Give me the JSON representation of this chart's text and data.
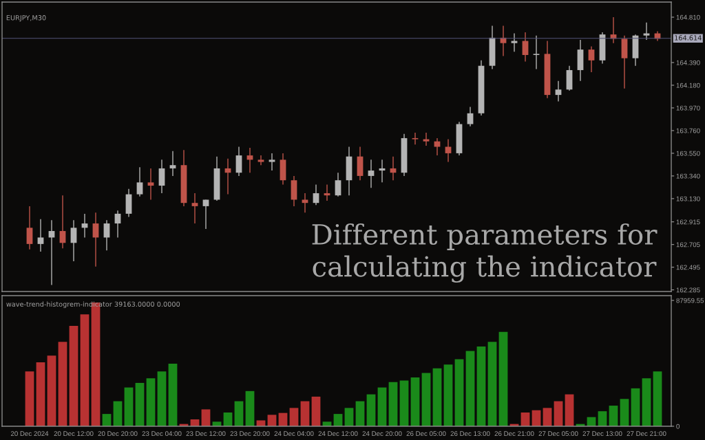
{
  "chart_data": [
    {
      "type": "candlestick",
      "title": "EURJPY,M30",
      "ohlc": [
        [
          162.86,
          163.06,
          162.66,
          162.71
        ],
        [
          162.71,
          162.94,
          162.64,
          162.77
        ],
        [
          162.77,
          162.93,
          162.33,
          162.83
        ],
        [
          162.83,
          163.16,
          162.67,
          162.72
        ],
        [
          162.72,
          162.93,
          162.55,
          162.86
        ],
        [
          162.86,
          162.99,
          162.77,
          162.9
        ],
        [
          162.9,
          163.0,
          162.5,
          162.77
        ],
        [
          162.77,
          162.93,
          162.65,
          162.9
        ],
        [
          162.9,
          163.02,
          162.77,
          162.99
        ],
        [
          162.99,
          163.22,
          162.96,
          163.17
        ],
        [
          163.17,
          163.42,
          163.15,
          163.28
        ],
        [
          163.28,
          163.41,
          163.12,
          163.25
        ],
        [
          163.25,
          163.49,
          163.18,
          163.41
        ],
        [
          163.41,
          163.57,
          163.34,
          163.44
        ],
        [
          163.44,
          163.58,
          163.06,
          163.09
        ],
        [
          163.09,
          163.18,
          162.9,
          163.06
        ],
        [
          163.06,
          163.12,
          162.85,
          163.12
        ],
        [
          163.12,
          163.52,
          163.11,
          163.41
        ],
        [
          163.41,
          163.5,
          163.17,
          163.37
        ],
        [
          163.37,
          163.61,
          163.34,
          163.53
        ],
        [
          163.53,
          163.6,
          163.37,
          163.49
        ],
        [
          163.49,
          163.53,
          163.44,
          163.47
        ],
        [
          163.47,
          163.55,
          163.39,
          163.49
        ],
        [
          163.49,
          163.55,
          163.26,
          163.3
        ],
        [
          163.3,
          163.34,
          163.06,
          163.12
        ],
        [
          163.12,
          163.18,
          163.0,
          163.09
        ],
        [
          163.09,
          163.26,
          163.07,
          163.18
        ],
        [
          163.18,
          163.26,
          163.11,
          163.16
        ],
        [
          163.16,
          163.37,
          163.15,
          163.3
        ],
        [
          163.3,
          163.61,
          163.16,
          163.52
        ],
        [
          163.52,
          163.61,
          163.3,
          163.34
        ],
        [
          163.34,
          163.49,
          163.23,
          163.39
        ],
        [
          163.39,
          163.49,
          163.28,
          163.41
        ],
        [
          163.41,
          163.52,
          163.3,
          163.37
        ],
        [
          163.37,
          163.73,
          163.34,
          163.69
        ],
        [
          163.69,
          163.74,
          163.63,
          163.68
        ],
        [
          163.68,
          163.74,
          163.62,
          163.66
        ],
        [
          163.66,
          163.69,
          163.53,
          163.61
        ],
        [
          163.61,
          163.68,
          163.47,
          163.55
        ],
        [
          163.55,
          163.84,
          163.53,
          163.82
        ],
        [
          163.82,
          163.98,
          163.8,
          163.92
        ],
        [
          163.92,
          164.41,
          163.9,
          164.36
        ],
        [
          164.36,
          164.73,
          164.33,
          164.62
        ],
        [
          164.62,
          164.73,
          164.45,
          164.57
        ],
        [
          164.57,
          164.66,
          164.49,
          164.59
        ],
        [
          164.59,
          164.67,
          164.4,
          164.46
        ],
        [
          164.46,
          164.64,
          164.33,
          164.47
        ],
        [
          164.47,
          164.59,
          164.06,
          164.09
        ],
        [
          164.09,
          164.22,
          164.03,
          164.14
        ],
        [
          164.14,
          164.36,
          164.13,
          164.32
        ],
        [
          164.32,
          164.6,
          164.22,
          164.51
        ],
        [
          164.51,
          164.54,
          164.3,
          164.41
        ],
        [
          164.41,
          164.67,
          164.38,
          164.65
        ],
        [
          164.65,
          164.81,
          164.57,
          164.61
        ],
        [
          164.61,
          164.64,
          164.15,
          164.43
        ],
        [
          164.43,
          164.65,
          164.36,
          164.64
        ],
        [
          164.64,
          164.76,
          164.6,
          164.66
        ],
        [
          164.66,
          164.68,
          164.59,
          164.61
        ]
      ],
      "colors": [
        "#c0544a",
        "#b4b4b4",
        "#b4b4b4",
        "#c0544a",
        "#b4b4b4",
        "#b4b4b4",
        "#c0544a",
        "#b4b4b4",
        "#b4b4b4",
        "#b4b4b4",
        "#b4b4b4",
        "#c0544a",
        "#b4b4b4",
        "#b4b4b4",
        "#c0544a",
        "#c0544a",
        "#b4b4b4",
        "#b4b4b4",
        "#c0544a",
        "#b4b4b4",
        "#c0544a",
        "#c0544a",
        "#b4b4b4",
        "#c0544a",
        "#c0544a",
        "#c0544a",
        "#b4b4b4",
        "#c0544a",
        "#b4b4b4",
        "#b4b4b4",
        "#c0544a",
        "#b4b4b4",
        "#b4b4b4",
        "#c0544a",
        "#b4b4b4",
        "#c0544a",
        "#c0544a",
        "#c0544a",
        "#c0544a",
        "#b4b4b4",
        "#b4b4b4",
        "#b4b4b4",
        "#b4b4b4",
        "#c0544a",
        "#b4b4b4",
        "#c0544a",
        "#b4b4b4",
        "#c0544a",
        "#b4b4b4",
        "#b4b4b4",
        "#b4b4b4",
        "#c0544a",
        "#b4b4b4",
        "#c0544a",
        "#c0544a",
        "#b4b4b4",
        "#b4b4b4",
        "#c0544a"
      ],
      "ylim": [
        162.27,
        164.95
      ],
      "yticks": [
        {
          "value": 162.285,
          "label": "162.285"
        },
        {
          "value": 162.495,
          "label": "162.495"
        },
        {
          "value": 162.705,
          "label": "162.705"
        },
        {
          "value": 162.915,
          "label": "162.915"
        },
        {
          "value": 163.13,
          "label": "163.130"
        },
        {
          "value": 163.34,
          "label": "163.340"
        },
        {
          "value": 163.55,
          "label": "163.550"
        },
        {
          "value": 163.76,
          "label": "163.760"
        },
        {
          "value": 163.97,
          "label": "163.970"
        },
        {
          "value": 164.18,
          "label": "164.180"
        },
        {
          "value": 164.39,
          "label": "164.390"
        },
        {
          "value": 164.81,
          "label": "164.810"
        }
      ],
      "ref_lines": [
        {
          "axis": "y",
          "value": 164.614,
          "label": "164.614",
          "color": "#55557a"
        }
      ],
      "annotations": [
        "Different parameters for calculating the indicator"
      ],
      "tick_labels": "y",
      "grid": false
    },
    {
      "type": "bar",
      "title": "wave-trend-histogrem-indicator 39163.0000 0.0000",
      "categories": [
        "20 Dec 2024",
        null,
        null,
        null,
        "20 Dec 12:00",
        null,
        null,
        null,
        "20 Dec 20:00",
        null,
        null,
        null,
        "23 Dec 04:00",
        null,
        null,
        null,
        "23 Dec 12:00",
        null,
        null,
        null,
        "23 Dec 20:00",
        null,
        null,
        null,
        "24 Dec 04:00",
        null,
        null,
        null,
        "24 Dec 12:00",
        null,
        null,
        null,
        "24 Dec 20:00",
        null,
        null,
        null,
        "26 Dec 05:00",
        null,
        null,
        null,
        "26 Dec 13:00",
        null,
        null,
        null,
        "26 Dec 21:00",
        null,
        null,
        null,
        "27 Dec 05:00",
        null,
        null,
        null,
        "27 Dec 13:00",
        null,
        null,
        null,
        "27 Dec 21:00",
        null
      ],
      "values": [
        38300,
        44700,
        49400,
        59000,
        70200,
        78200,
        86500,
        8600,
        17500,
        27100,
        30300,
        33500,
        38300,
        43700,
        1600,
        4800,
        11800,
        3200,
        9600,
        17500,
        24600,
        4100,
        8000,
        9300,
        12800,
        17500,
        20700,
        3200,
        8600,
        12800,
        17500,
        22300,
        27100,
        30900,
        31900,
        34100,
        37300,
        40500,
        43100,
        46900,
        52600,
        55800,
        59000,
        66000,
        1600,
        9600,
        11200,
        12800,
        17500,
        22300,
        1600,
        6400,
        10500,
        14400,
        19100,
        26500,
        33500,
        38300
      ],
      "colors": [
        "#b83232",
        "#b83232",
        "#b83232",
        "#b83232",
        "#b83232",
        "#b83232",
        "#b83232",
        "#1a8a1a",
        "#1a8a1a",
        "#1a8a1a",
        "#1a8a1a",
        "#1a8a1a",
        "#1a8a1a",
        "#1a8a1a",
        "#b83232",
        "#b83232",
        "#b83232",
        "#1a8a1a",
        "#1a8a1a",
        "#1a8a1a",
        "#1a8a1a",
        "#b83232",
        "#b83232",
        "#b83232",
        "#b83232",
        "#b83232",
        "#b83232",
        "#1a8a1a",
        "#1a8a1a",
        "#1a8a1a",
        "#1a8a1a",
        "#1a8a1a",
        "#1a8a1a",
        "#1a8a1a",
        "#1a8a1a",
        "#1a8a1a",
        "#1a8a1a",
        "#1a8a1a",
        "#1a8a1a",
        "#1a8a1a",
        "#1a8a1a",
        "#1a8a1a",
        "#1a8a1a",
        "#1a8a1a",
        "#b83232",
        "#b83232",
        "#b83232",
        "#b83232",
        "#b83232",
        "#b83232",
        "#1a8a1a",
        "#1a8a1a",
        "#1a8a1a",
        "#1a8a1a",
        "#1a8a1a",
        "#1a8a1a",
        "#1a8a1a",
        "#1a8a1a"
      ],
      "ylim": [
        0,
        91300
      ],
      "yticks": [
        {
          "value": 0,
          "label": "0"
        },
        {
          "value": 87959.55,
          "label": "87959.55"
        }
      ],
      "grid": false
    }
  ]
}
